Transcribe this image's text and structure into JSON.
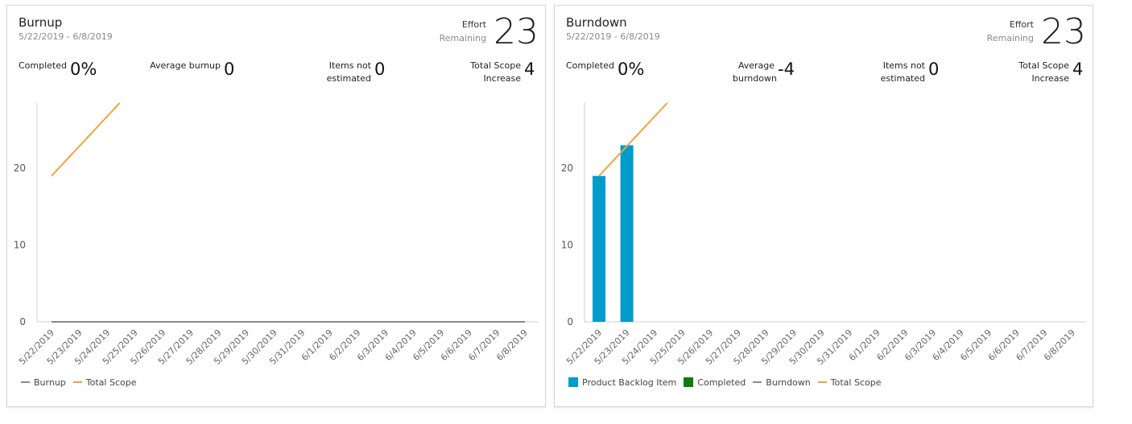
{
  "burnup": {
    "title": "Burnup",
    "date_range": "5/22/2019 - 6/8/2019",
    "effort_label_1": "Effort",
    "effort_label_2": "Remaining",
    "effort_value": "23",
    "metrics": [
      {
        "label": "Completed",
        "value": "0%"
      },
      {
        "label": "Average burnup",
        "value": "0"
      },
      {
        "label": "Items not estimated",
        "value": "0"
      },
      {
        "label": "Total Scope Increase",
        "value": "4"
      }
    ],
    "legend": [
      {
        "label": "Burnup",
        "type": "line",
        "color": "#8a8a8a"
      },
      {
        "label": "Total Scope",
        "type": "line",
        "color": "#f2a33a"
      }
    ]
  },
  "burndown": {
    "title": "Burndown",
    "date_range": "5/22/2019 - 6/8/2019",
    "effort_label_1": "Effort",
    "effort_label_2": "Remaining",
    "effort_value": "23",
    "metrics": [
      {
        "label": "Completed",
        "value": "0%"
      },
      {
        "label": "Average burndown",
        "value": "-4"
      },
      {
        "label": "Items not estimated",
        "value": "0"
      },
      {
        "label": "Total Scope Increase",
        "value": "4"
      }
    ],
    "legend": [
      {
        "label": "Product Backlog Item",
        "type": "box",
        "color": "#009ccc"
      },
      {
        "label": "Completed",
        "type": "box",
        "color": "#107c10"
      },
      {
        "label": "Burndown",
        "type": "line",
        "color": "#8a8a8a"
      },
      {
        "label": "Total Scope",
        "type": "line",
        "color": "#f2a33a"
      }
    ]
  },
  "chart_data": [
    {
      "type": "line",
      "title": "Burnup",
      "x": [
        "5/22/2019",
        "5/23/2019",
        "5/24/2019",
        "5/25/2019",
        "5/26/2019",
        "5/27/2019",
        "5/28/2019",
        "5/29/2019",
        "5/30/2019",
        "5/31/2019",
        "6/1/2019",
        "6/2/2019",
        "6/3/2019",
        "6/4/2019",
        "6/5/2019",
        "6/6/2019",
        "6/7/2019",
        "6/8/2019"
      ],
      "ylim": [
        0,
        28.5
      ],
      "yticks": [
        0,
        10,
        20
      ],
      "series": [
        {
          "name": "Burnup",
          "type": "line",
          "color": "#8a8a8a",
          "values": [
            0,
            0,
            0,
            0,
            0,
            0,
            0,
            0,
            0,
            0,
            0,
            0,
            0,
            0,
            0,
            0,
            0,
            0
          ]
        },
        {
          "name": "Total Scope",
          "type": "line",
          "color": "#f2a33a",
          "points": [
            [
              0,
              19
            ],
            [
              2.45,
              28.5
            ]
          ]
        }
      ],
      "legend_position": "bottom-left"
    },
    {
      "type": "bar",
      "title": "Burndown",
      "x": [
        "5/22/2019",
        "5/23/2019",
        "5/24/2019",
        "5/25/2019",
        "5/26/2019",
        "5/27/2019",
        "5/28/2019",
        "5/29/2019",
        "5/30/2019",
        "5/31/2019",
        "6/1/2019",
        "6/2/2019",
        "6/3/2019",
        "6/4/2019",
        "6/5/2019",
        "6/6/2019",
        "6/7/2019",
        "6/8/2019"
      ],
      "ylim": [
        0,
        28.5
      ],
      "yticks": [
        0,
        10,
        20
      ],
      "series": [
        {
          "name": "Product Backlog Item",
          "type": "bar",
          "color": "#009ccc",
          "values": [
            19,
            23,
            null,
            null,
            null,
            null,
            null,
            null,
            null,
            null,
            null,
            null,
            null,
            null,
            null,
            null,
            null,
            null
          ]
        },
        {
          "name": "Completed",
          "type": "bar",
          "color": "#107c10",
          "values": [
            0,
            0,
            null,
            null,
            null,
            null,
            null,
            null,
            null,
            null,
            null,
            null,
            null,
            null,
            null,
            null,
            null,
            null
          ]
        },
        {
          "name": "Total Scope",
          "type": "line",
          "color": "#f2a33a",
          "points": [
            [
              0,
              19
            ],
            [
              2.45,
              28.5
            ]
          ]
        }
      ],
      "legend_position": "bottom-left"
    }
  ]
}
